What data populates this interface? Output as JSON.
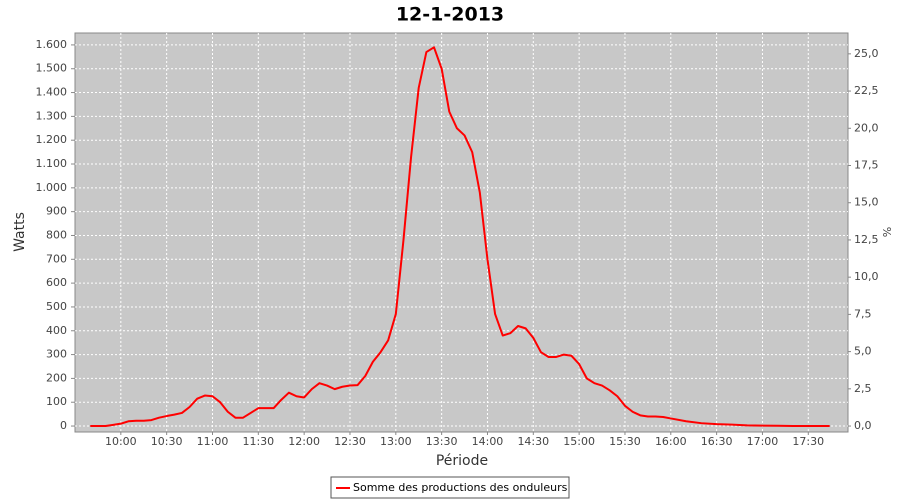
{
  "chart_data": {
    "type": "line",
    "title": "12-1-2013",
    "x_label": "Période",
    "y_label": "Watts",
    "y2_label": "%",
    "x": [
      "09:40",
      "09:50",
      "09:55",
      "10:00",
      "10:05",
      "10:10",
      "10:15",
      "10:20",
      "10:25",
      "10:30",
      "10:35",
      "10:40",
      "10:45",
      "10:50",
      "10:55",
      "11:00",
      "11:05",
      "11:10",
      "11:15",
      "11:20",
      "11:25",
      "11:30",
      "11:35",
      "11:40",
      "11:45",
      "11:50",
      "11:55",
      "12:00",
      "12:05",
      "12:10",
      "12:15",
      "12:20",
      "12:25",
      "12:30",
      "12:35",
      "12:40",
      "12:45",
      "12:50",
      "12:55",
      "13:00",
      "13:05",
      "13:10",
      "13:15",
      "13:20",
      "13:25",
      "13:30",
      "13:35",
      "13:40",
      "13:45",
      "13:50",
      "13:55",
      "14:00",
      "14:05",
      "14:10",
      "14:15",
      "14:20",
      "14:25",
      "14:30",
      "14:35",
      "14:40",
      "14:45",
      "14:50",
      "14:55",
      "15:00",
      "15:05",
      "15:10",
      "15:15",
      "15:20",
      "15:25",
      "15:30",
      "15:35",
      "15:40",
      "15:45",
      "15:50",
      "15:55",
      "16:00",
      "16:10",
      "16:20",
      "16:30",
      "16:40",
      "16:50",
      "17:00",
      "17:10",
      "17:20",
      "17:30",
      "17:44"
    ],
    "series": [
      {
        "name": "Somme des productions des onduleurs",
        "color": "#ff0000",
        "values": [
          0,
          0,
          5,
          10,
          20,
          22,
          22,
          25,
          35,
          42,
          48,
          55,
          80,
          115,
          128,
          125,
          100,
          60,
          35,
          35,
          55,
          75,
          75,
          75,
          110,
          140,
          125,
          120,
          155,
          180,
          170,
          155,
          165,
          170,
          172,
          210,
          270,
          310,
          360,
          470,
          780,
          1130,
          1420,
          1570,
          1590,
          1500,
          1320,
          1250,
          1220,
          1150,
          980,
          700,
          470,
          380,
          390,
          420,
          410,
          370,
          310,
          290,
          290,
          300,
          295,
          260,
          200,
          180,
          170,
          150,
          125,
          85,
          60,
          45,
          40,
          40,
          38,
          32,
          20,
          12,
          8,
          6,
          3,
          2,
          1,
          0,
          0,
          0
        ]
      }
    ],
    "xlim": [
      "09:30",
      "17:56"
    ],
    "xticks": [
      "10:00",
      "10:30",
      "11:00",
      "11:30",
      "12:00",
      "12:30",
      "13:00",
      "13:30",
      "14:00",
      "14:30",
      "15:00",
      "15:30",
      "16:00",
      "16:30",
      "17:00",
      "17:30"
    ],
    "ylim": [
      -25,
      1650
    ],
    "yticks": [
      0,
      100,
      200,
      300,
      400,
      500,
      600,
      700,
      800,
      900,
      {
        "value": 1000,
        "label": "1.000"
      },
      {
        "value": 1100,
        "label": "1.100"
      },
      {
        "value": 1200,
        "label": "1.200"
      },
      {
        "value": 1300,
        "label": "1.300"
      },
      {
        "value": 1400,
        "label": "1.400"
      },
      {
        "value": 1500,
        "label": "1.500"
      },
      {
        "value": 1600,
        "label": "1.600"
      }
    ],
    "y2lim": [
      -0.4,
      26.4
    ],
    "y2ticks": [
      {
        "value": 0,
        "label": "0,0"
      },
      {
        "value": 2.5,
        "label": "2,5"
      },
      {
        "value": 5,
        "label": "5,0"
      },
      {
        "value": 7.5,
        "label": "7,5"
      },
      {
        "value": 10,
        "label": "10,0"
      },
      {
        "value": 12.5,
        "label": "12,5"
      },
      {
        "value": 15,
        "label": "15,0"
      },
      {
        "value": 17.5,
        "label": "17,5"
      },
      {
        "value": 20,
        "label": "20,0"
      },
      {
        "value": 22.5,
        "label": "22,5"
      },
      {
        "value": 25,
        "label": "25,0"
      }
    ],
    "grid": true,
    "legend": "bottom"
  }
}
